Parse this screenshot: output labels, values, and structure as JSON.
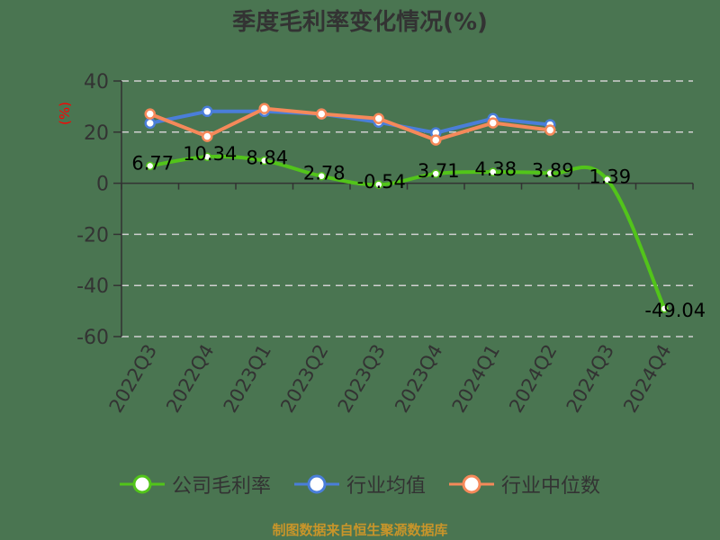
{
  "title": "季度毛利率变化情况(%)",
  "footer": "制图数据来自恒生聚源数据库",
  "colors": {
    "background": "#4a7551",
    "company": "#52c41a",
    "industry_avg": "#4a7ed9",
    "industry_median": "#f5895a",
    "axis": "#333333",
    "grid": "#d0d0d0",
    "ylabel": "#ff0000",
    "footer": "#c8952a"
  },
  "legend": [
    {
      "name": "公司毛利率",
      "color": "#52c41a",
      "icon": "circle-marker-icon"
    },
    {
      "name": "行业均值",
      "color": "#4a7ed9",
      "icon": "circle-marker-icon"
    },
    {
      "name": "行业中位数",
      "color": "#f5895a",
      "icon": "circle-marker-icon"
    }
  ],
  "chart_data": {
    "type": "line",
    "title": "季度毛利率变化情况(%)",
    "xlabel": "",
    "ylabel": "(%)",
    "ylim": [
      -60,
      40
    ],
    "yticks": [
      40,
      20,
      0,
      -20,
      -40,
      -60
    ],
    "grid": true,
    "legend_position": "bottom",
    "categories": [
      "2022Q3",
      "2022Q4",
      "2023Q1",
      "2023Q2",
      "2023Q3",
      "2023Q4",
      "2024Q1",
      "2024Q2",
      "2024Q3",
      "2024Q4"
    ],
    "series": [
      {
        "name": "公司毛利率",
        "color": "#52c41a",
        "smooth": true,
        "show_labels": true,
        "values": [
          6.77,
          10.34,
          8.84,
          2.78,
          -0.54,
          3.71,
          4.38,
          3.89,
          1.39,
          -49.04
        ],
        "labels": [
          "6.77",
          "10.34",
          "8.84",
          "2.78",
          "-0.54",
          "3.71",
          "4.38",
          "3.89",
          "1.39",
          "-49.04"
        ]
      },
      {
        "name": "行业均值",
        "color": "#4a7ed9",
        "smooth": false,
        "show_labels": false,
        "values": [
          23.5,
          28.1,
          28.1,
          27.1,
          23.9,
          19.7,
          25.3,
          22.9,
          null,
          null
        ]
      },
      {
        "name": "行业中位数",
        "color": "#f5895a",
        "smooth": false,
        "show_labels": false,
        "values": [
          27.1,
          18.3,
          29.2,
          27.1,
          25.3,
          16.9,
          23.6,
          20.8,
          null,
          null
        ]
      }
    ]
  }
}
